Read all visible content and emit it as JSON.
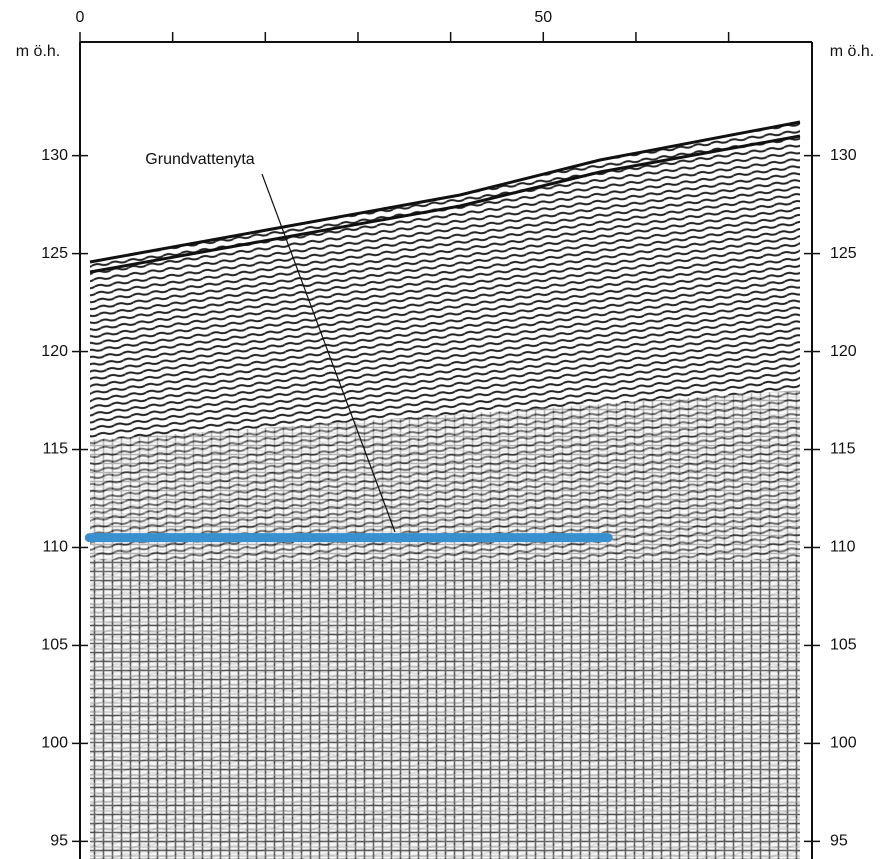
{
  "chart_data": {
    "type": "radargram",
    "y_label": "m ö.h.",
    "annotation": "Grundvattenyta",
    "xlim": [
      0,
      79
    ],
    "xticks": [
      0,
      50
    ],
    "xminorticks": [
      10,
      20,
      30,
      40,
      60,
      70
    ],
    "ylim": [
      94.1,
      135.8
    ],
    "yticks": [
      95,
      100,
      105,
      110,
      115,
      120,
      125,
      130
    ],
    "series": [
      {
        "name": "Grundvattenyta",
        "color": "#3a8fd0",
        "x": [
          1,
          57
        ],
        "values": [
          110.5,
          110.5
        ]
      }
    ]
  }
}
